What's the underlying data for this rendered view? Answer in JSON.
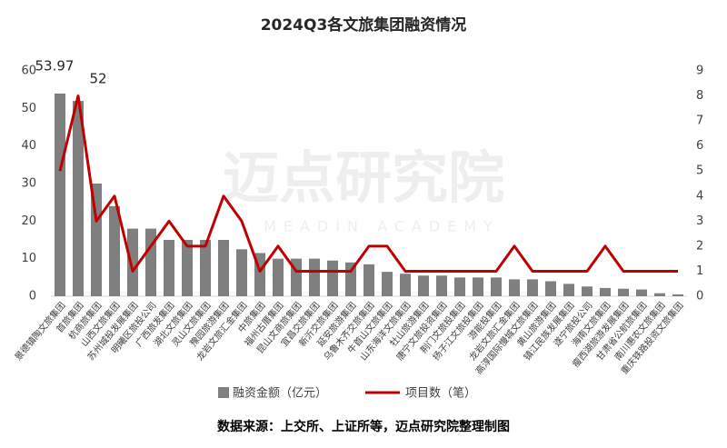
{
  "chart_data": {
    "type": "bar-line",
    "title": "2024Q3各文旅集团融资情况",
    "source": "数据来源：上交所、上证所等，迈点研究院整理制图",
    "watermark": "迈点研究院",
    "watermark_sub": "MEADIN ACADEMY",
    "categories": [
      "景德镇陶文旅集团",
      "首旅集团",
      "杭商旅集团",
      "山西文旅集团",
      "苏州城投发展集团",
      "明曦区旅投公司",
      "广西旅发集团",
      "湖北文旅集团",
      "灵山文旅集团",
      "豫园旅游集团",
      "龙岩文旅汇金集团",
      "中旅集团",
      "福州古厝集团",
      "昆山文商旅集团",
      "宜昌交旅集团",
      "新沂交旅集团",
      "延安旅游集团",
      "乌鲁木齐交旅集团",
      "牛首山文旅集团",
      "山东海洋文旅集团",
      "牡山旅游集团",
      "唐宁文旅投资集团",
      "荆门文旅投集团",
      "扬子江文旅投集团",
      "游能投集团",
      "龙岩文旅汇金集团",
      "高淳国际慢城文旅集团",
      "黄山旅游集团",
      "镇江民族发展集团",
      "遂宁旅投公司",
      "海南文旅集团",
      "瘦西湖旅游发展集团",
      "甘肃省公航旅集团",
      "南川惠农文旅集团",
      "重庆铁路投资文旅集团"
    ],
    "series": [
      {
        "name": "融资金额（亿元）",
        "type": "bar",
        "color": "#7f7f7f",
        "values": [
          53.97,
          52,
          30,
          24,
          18,
          18,
          15,
          15,
          15,
          15,
          12.5,
          11.5,
          10,
          10,
          10,
          9.5,
          9,
          8.5,
          6.5,
          6,
          5.5,
          5.5,
          5,
          5,
          5,
          4.5,
          4.5,
          4,
          3.3,
          2.6,
          2.2,
          2,
          1.8,
          0.8,
          0.5
        ],
        "value_labels": [
          "53.97",
          "52",
          null,
          null,
          null,
          null,
          null,
          null,
          null,
          null,
          null,
          null,
          null,
          null,
          null,
          null,
          null,
          null,
          null,
          null,
          null,
          null,
          null,
          null,
          null,
          null,
          null,
          null,
          null,
          null,
          null,
          null,
          null,
          null,
          null
        ]
      },
      {
        "name": "项目数（笔）",
        "type": "line",
        "axis": "y2",
        "color": "#c00000",
        "values": [
          5,
          8,
          3,
          4,
          1,
          2,
          3,
          2,
          2,
          4,
          3,
          1,
          2,
          1,
          1,
          1,
          1,
          2,
          2,
          1,
          1,
          1,
          1,
          1,
          1,
          2,
          1,
          1,
          1,
          1,
          2,
          1,
          1,
          1,
          1
        ]
      }
    ],
    "ylim": [
      0,
      60
    ],
    "yticks": [
      0,
      10,
      20,
      30,
      40,
      50,
      60
    ],
    "y2lim": [
      0,
      9
    ],
    "y2ticks": [
      0,
      1,
      2,
      3,
      4,
      5,
      6,
      7,
      8,
      9
    ]
  }
}
